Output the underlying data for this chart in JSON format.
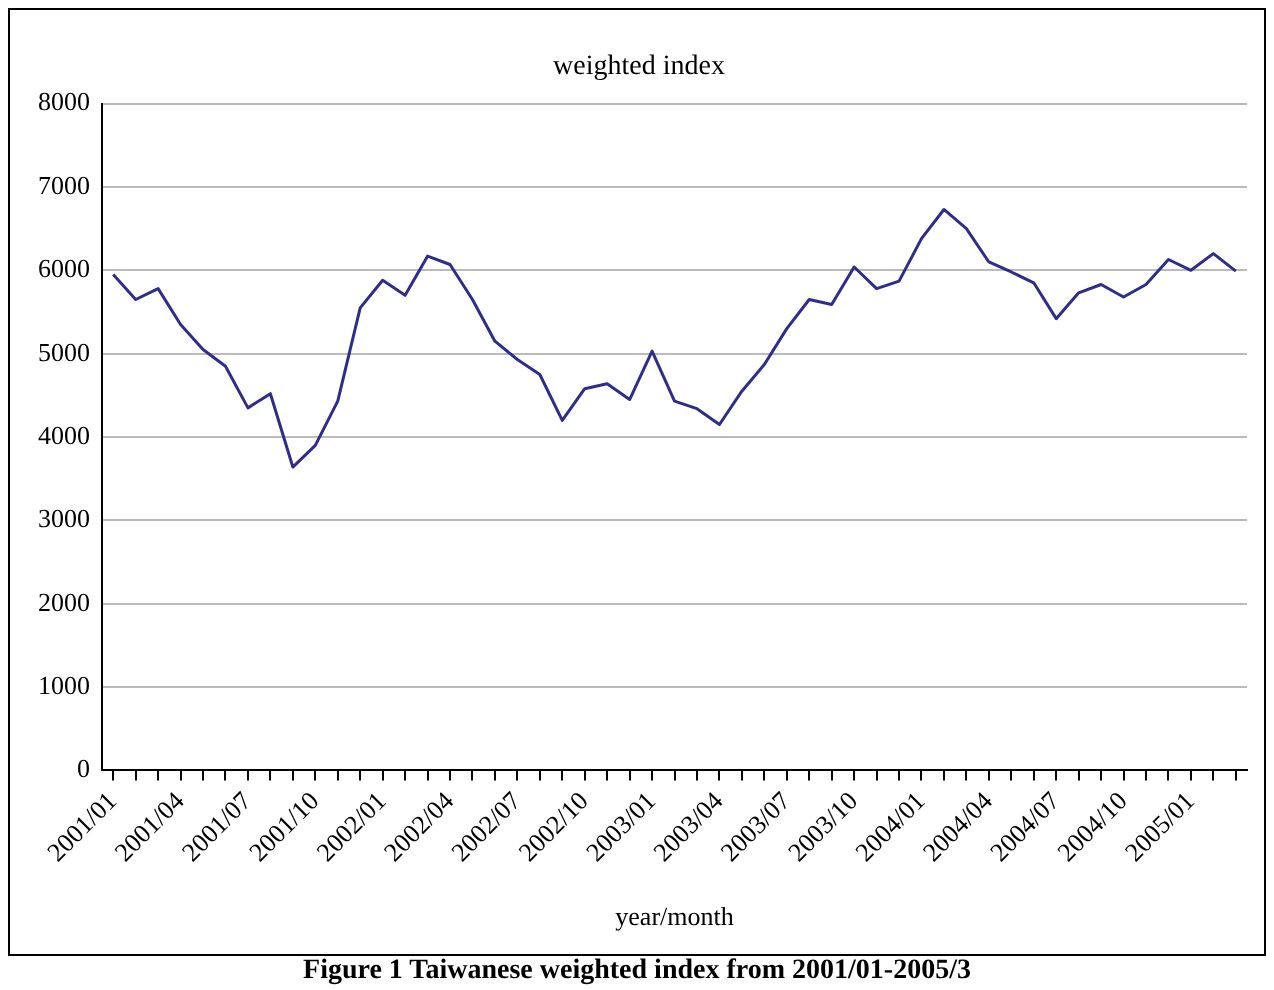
{
  "chart_data": {
    "type": "line",
    "title": "weighted index",
    "xlabel": "year/month",
    "categories": [
      "2001/01",
      null,
      null,
      "2001/04",
      null,
      null,
      "2001/07",
      null,
      null,
      "2001/10",
      null,
      null,
      "2002/01",
      null,
      null,
      "2002/04",
      null,
      null,
      "2002/07",
      null,
      null,
      "2002/10",
      null,
      null,
      "2003/01",
      null,
      null,
      "2003/04",
      null,
      null,
      "2003/07",
      null,
      null,
      "2003/10",
      null,
      null,
      "2004/01",
      null,
      null,
      "2004/04",
      null,
      null,
      "2004/07",
      null,
      null,
      "2004/10",
      null,
      null,
      "2005/01",
      null,
      null
    ],
    "series": [
      {
        "color": "#2e2e8a",
        "values": [
          5950,
          5650,
          5780,
          5350,
          5050,
          4850,
          4350,
          4520,
          3640,
          3900,
          4430,
          5550,
          5880,
          5700,
          6170,
          6070,
          5650,
          5150,
          4930,
          4750,
          4200,
          4580,
          4640,
          4450,
          5030,
          4430,
          4340,
          4150,
          4550,
          4870,
          5300,
          5650,
          5590,
          6040,
          5780,
          5870,
          6380,
          6730,
          6500,
          6100,
          5980,
          5850,
          5420,
          5730,
          5830,
          5680,
          5830,
          6130,
          6000,
          6200,
          5990
        ]
      }
    ],
    "ylim": [
      0,
      8000
    ],
    "yticks": [
      0,
      1000,
      2000,
      3000,
      4000,
      5000,
      6000,
      7000,
      8000
    ],
    "grid": "y",
    "legend": false,
    "marker": "none",
    "line_style": "solid",
    "annotations": [
      "Figure 1    Taiwanese weighted index from 2001/01-2005/3"
    ]
  }
}
